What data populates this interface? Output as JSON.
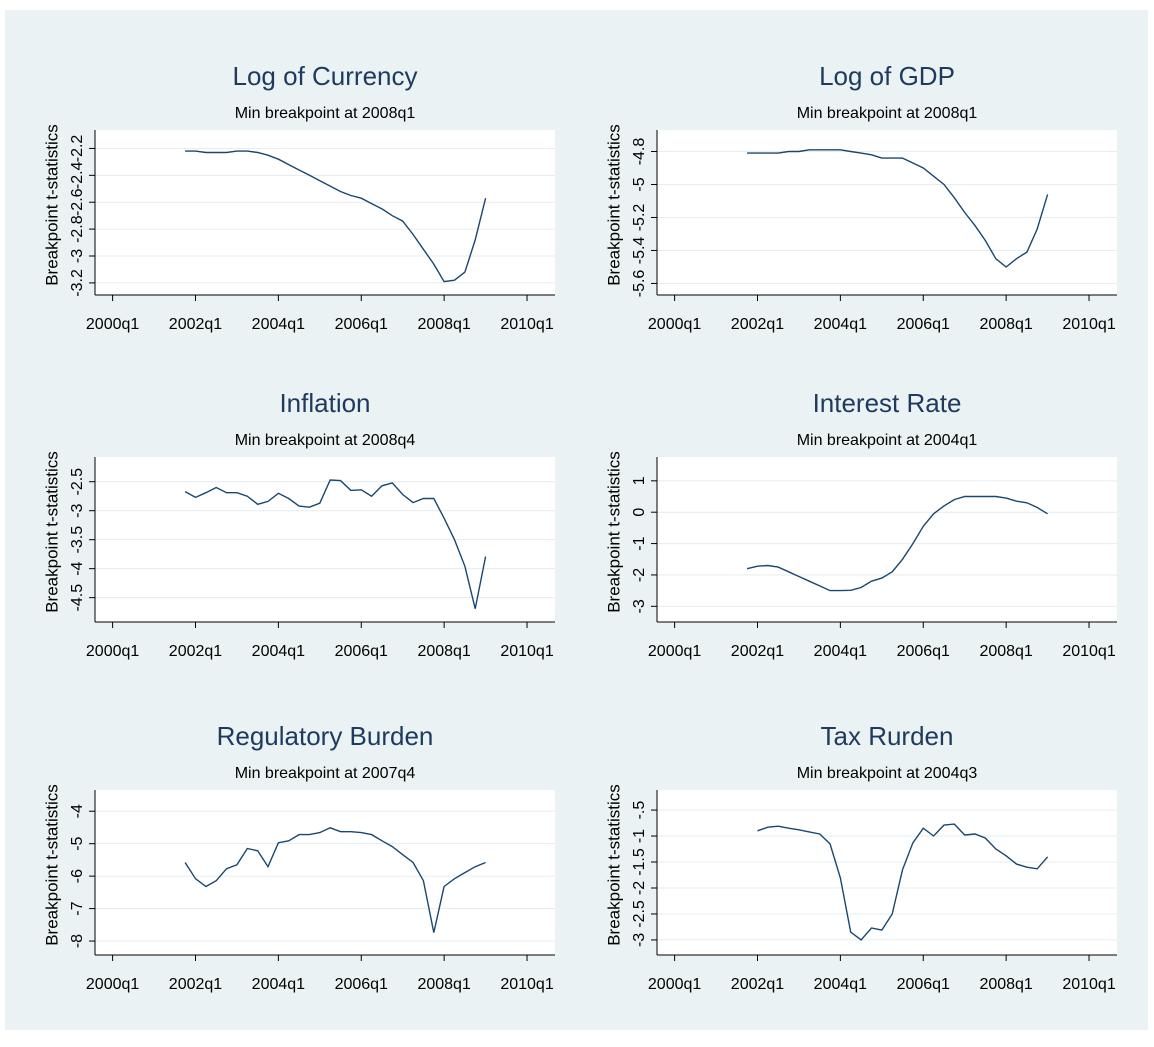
{
  "chart_data": [
    {
      "type": "line",
      "title": "Log of Currency",
      "subtitle": "Min breakpoint at 2008q1",
      "y_label": "Breakpoint t-statistics",
      "grid": true,
      "x": [
        167,
        168,
        169,
        170,
        171,
        172,
        173,
        174,
        175,
        176,
        177,
        178,
        179,
        180,
        181,
        182,
        183,
        184,
        185,
        186,
        187,
        188,
        189,
        190,
        191,
        192,
        193,
        194,
        195,
        196
      ],
      "series": [
        {
          "color": "#1a476f",
          "values": [
            -2.22,
            -2.22,
            -2.23,
            -2.23,
            -2.23,
            -2.22,
            -2.22,
            -2.23,
            -2.25,
            -2.28,
            -2.32,
            -2.36,
            -2.4,
            -2.44,
            -2.48,
            -2.52,
            -2.55,
            -2.57,
            -2.61,
            -2.65,
            -2.7,
            -2.74,
            -2.84,
            -2.95,
            -3.06,
            -3.19,
            -3.18,
            -3.12,
            -2.88,
            -2.57
          ]
        }
      ],
      "xlim": [
        158.3,
        202.7
      ],
      "xticks": [
        {
          "value": 160,
          "label": "2000q1"
        },
        {
          "value": 168,
          "label": "2002q1"
        },
        {
          "value": 176,
          "label": "2004q1"
        },
        {
          "value": 184,
          "label": "2006q1"
        },
        {
          "value": 192,
          "label": "2008q1"
        },
        {
          "value": 200,
          "label": "2010q1"
        }
      ],
      "ylim": [
        -3.29,
        -2.1
      ],
      "yticks": [
        -3.2,
        -3,
        -2.8,
        -2.6,
        -2.4,
        -2.2
      ]
    },
    {
      "type": "line",
      "title": "Log of GDP",
      "subtitle": "Min breakpoint at 2008q1",
      "y_label": "Breakpoint t-statistics",
      "grid": true,
      "x": [
        167,
        168,
        169,
        170,
        171,
        172,
        173,
        174,
        175,
        176,
        177,
        178,
        179,
        180,
        181,
        182,
        183,
        184,
        185,
        186,
        187,
        188,
        189,
        190,
        191,
        192,
        193,
        194,
        195,
        196
      ],
      "series": [
        {
          "color": "#1a476f",
          "values": [
            -4.81,
            -4.81,
            -4.81,
            -4.81,
            -4.8,
            -4.8,
            -4.79,
            -4.79,
            -4.79,
            -4.79,
            -4.8,
            -4.81,
            -4.82,
            -4.84,
            -4.84,
            -4.84,
            -4.87,
            -4.9,
            -4.95,
            -5.0,
            -5.08,
            -5.17,
            -5.25,
            -5.34,
            -5.45,
            -5.5,
            -5.45,
            -5.41,
            -5.27,
            -5.06
          ]
        }
      ],
      "xlim": [
        158.3,
        202.7
      ],
      "xticks": [
        {
          "value": 160,
          "label": "2000q1"
        },
        {
          "value": 168,
          "label": "2002q1"
        },
        {
          "value": 176,
          "label": "2004q1"
        },
        {
          "value": 184,
          "label": "2006q1"
        },
        {
          "value": 192,
          "label": "2008q1"
        },
        {
          "value": 200,
          "label": "2010q1"
        }
      ],
      "ylim": [
        -5.67,
        -4.7
      ],
      "yticks": [
        -5.6,
        -5.4,
        -5.2,
        -5,
        -4.8
      ]
    },
    {
      "type": "line",
      "title": "Inflation",
      "subtitle": "Min breakpoint at 2008q4",
      "y_label": "Breakpoint t-statistics",
      "grid": true,
      "x": [
        167,
        168,
        169,
        170,
        171,
        172,
        173,
        174,
        175,
        176,
        177,
        178,
        179,
        180,
        181,
        182,
        183,
        184,
        185,
        186,
        187,
        188,
        189,
        190,
        191,
        192,
        193,
        194,
        195,
        196
      ],
      "series": [
        {
          "color": "#1a476f",
          "values": [
            -2.67,
            -2.77,
            -2.69,
            -2.6,
            -2.69,
            -2.69,
            -2.75,
            -2.89,
            -2.84,
            -2.7,
            -2.79,
            -2.92,
            -2.94,
            -2.87,
            -2.47,
            -2.48,
            -2.65,
            -2.64,
            -2.75,
            -2.57,
            -2.52,
            -2.72,
            -2.86,
            -2.79,
            -2.79,
            -3.13,
            -3.5,
            -3.96,
            -4.69,
            -3.79
          ]
        }
      ],
      "xlim": [
        158.3,
        202.7
      ],
      "xticks": [
        {
          "value": 160,
          "label": "2000q1"
        },
        {
          "value": 168,
          "label": "2002q1"
        },
        {
          "value": 176,
          "label": "2004q1"
        },
        {
          "value": 184,
          "label": "2006q1"
        },
        {
          "value": 192,
          "label": "2008q1"
        },
        {
          "value": 200,
          "label": "2010q1"
        }
      ],
      "ylim": [
        -4.92,
        -2.16
      ],
      "yticks": [
        -4.5,
        -4,
        -3.5,
        -3,
        -2.5
      ]
    },
    {
      "type": "line",
      "title": "Interest Rate",
      "subtitle": "Min breakpoint at 2004q1",
      "y_label": "Breakpoint t-statistics",
      "grid": true,
      "x": [
        167,
        168,
        169,
        170,
        171,
        172,
        173,
        174,
        175,
        176,
        177,
        178,
        179,
        180,
        181,
        182,
        183,
        184,
        185,
        186,
        187,
        188,
        189,
        190,
        191,
        192,
        193,
        194,
        195,
        196
      ],
      "series": [
        {
          "color": "#1a476f",
          "values": [
            -1.8,
            -1.72,
            -1.7,
            -1.75,
            -1.9,
            -2.05,
            -2.2,
            -2.35,
            -2.5,
            -2.5,
            -2.49,
            -2.4,
            -2.2,
            -2.1,
            -1.9,
            -1.5,
            -1.0,
            -0.45,
            -0.05,
            0.2,
            0.4,
            0.5,
            0.5,
            0.5,
            0.5,
            0.45,
            0.35,
            0.3,
            0.15,
            -0.05
          ]
        }
      ],
      "xlim": [
        158.3,
        202.7
      ],
      "xticks": [
        {
          "value": 160,
          "label": "2000q1"
        },
        {
          "value": 168,
          "label": "2002q1"
        },
        {
          "value": 176,
          "label": "2004q1"
        },
        {
          "value": 184,
          "label": "2006q1"
        },
        {
          "value": 192,
          "label": "2008q1"
        },
        {
          "value": 200,
          "label": "2010q1"
        }
      ],
      "ylim": [
        -3.5,
        1.6
      ],
      "yticks": [
        -3,
        -2,
        -1,
        0,
        1
      ]
    },
    {
      "type": "line",
      "title": "Regulatory Burden",
      "subtitle": "Min breakpoint at 2007q4",
      "y_label": "Breakpoint t-statistics",
      "grid": true,
      "x": [
        167,
        168,
        169,
        170,
        171,
        172,
        173,
        174,
        175,
        176,
        177,
        178,
        179,
        180,
        181,
        182,
        183,
        184,
        185,
        186,
        187,
        188,
        189,
        190,
        191,
        192,
        193,
        194,
        195,
        196
      ],
      "series": [
        {
          "color": "#1a476f",
          "values": [
            -5.58,
            -6.08,
            -6.32,
            -6.14,
            -5.77,
            -5.65,
            -5.15,
            -5.22,
            -5.71,
            -4.97,
            -4.91,
            -4.72,
            -4.72,
            -4.66,
            -4.51,
            -4.63,
            -4.63,
            -4.66,
            -4.72,
            -4.91,
            -5.09,
            -5.34,
            -5.58,
            -6.14,
            -7.74,
            -6.32,
            -6.08,
            -5.89,
            -5.71,
            -5.58
          ]
        }
      ],
      "xlim": [
        158.3,
        202.7
      ],
      "xticks": [
        {
          "value": 160,
          "label": "2000q1"
        },
        {
          "value": 168,
          "label": "2002q1"
        },
        {
          "value": 176,
          "label": "2004q1"
        },
        {
          "value": 184,
          "label": "2006q1"
        },
        {
          "value": 192,
          "label": "2008q1"
        },
        {
          "value": 200,
          "label": "2010q1"
        }
      ],
      "ylim": [
        -8.43,
        -3.5
      ],
      "yticks": [
        -8,
        -7,
        -6,
        -5,
        -4
      ]
    },
    {
      "type": "line",
      "title": "Tax Rurden",
      "subtitle": "Min breakpoint at 2004q3",
      "y_label": "Breakpoint t-statistics",
      "grid": true,
      "x": [
        168,
        169,
        170,
        171,
        172,
        173,
        174,
        175,
        176,
        177,
        178,
        179,
        180,
        181,
        182,
        183,
        184,
        185,
        186,
        187,
        188,
        189,
        190,
        191,
        192,
        193,
        194,
        195,
        196
      ],
      "series": [
        {
          "color": "#1a476f",
          "values": [
            -0.9,
            -0.83,
            -0.81,
            -0.85,
            -0.88,
            -0.92,
            -0.96,
            -1.15,
            -1.81,
            -2.85,
            -3.0,
            -2.77,
            -2.81,
            -2.5,
            -1.65,
            -1.13,
            -0.85,
            -1.0,
            -0.79,
            -0.77,
            -0.98,
            -0.96,
            -1.04,
            -1.25,
            -1.38,
            -1.54,
            -1.6,
            -1.63,
            -1.4
          ]
        }
      ],
      "xlim": [
        158.3,
        202.7
      ],
      "xticks": [
        {
          "value": 160,
          "label": "2000q1"
        },
        {
          "value": 168,
          "label": "2002q1"
        },
        {
          "value": 176,
          "label": "2004q1"
        },
        {
          "value": 184,
          "label": "2006q1"
        },
        {
          "value": 192,
          "label": "2008q1"
        },
        {
          "value": 200,
          "label": "2010q1"
        }
      ],
      "ylim": [
        -3.29,
        -0.21
      ],
      "yticks": [
        -3,
        -2.5,
        -2,
        -1.5,
        -1,
        {
          "value": -0.5,
          "label": "-.5"
        }
      ]
    }
  ]
}
